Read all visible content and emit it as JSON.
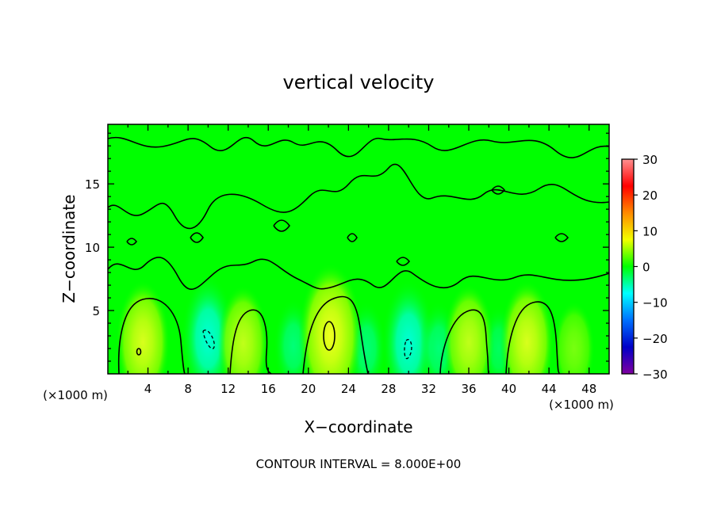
{
  "chart_data": {
    "type": "heatmap",
    "title": "vertical velocity",
    "xlabel": "X−coordinate",
    "ylabel": "Z−coordinate",
    "x_unit_label": "(×1000 m)",
    "z_unit_label": "(×1000 m)",
    "xlim": [
      0,
      50
    ],
    "ylim": [
      0,
      19.7
    ],
    "x_ticks": [
      4,
      8,
      12,
      16,
      20,
      24,
      28,
      32,
      36,
      40,
      44,
      48
    ],
    "x_tick_labels": [
      "4",
      "8",
      "12",
      "16",
      "20",
      "24",
      "28",
      "32",
      "36",
      "40",
      "44",
      "48"
    ],
    "y_ticks": [
      5,
      10,
      15
    ],
    "y_tick_labels": [
      "5",
      "10",
      "15"
    ],
    "colorbar": {
      "range": [
        -30,
        30
      ],
      "ticks": [
        30,
        20,
        10,
        0,
        -10,
        -20,
        -30
      ],
      "tick_labels": [
        "30",
        "20",
        "10",
        "0",
        "−10",
        "−20",
        "−30"
      ],
      "colors": [
        "#ff9090",
        "#ff0000",
        "#ff8a00",
        "#f2ff00",
        "#00ff00",
        "#00ffff",
        "#0070ff",
        "#0000c8",
        "#8000a0"
      ]
    },
    "background_value": 0,
    "updrafts": [
      {
        "x": 3.5,
        "z": 2.5,
        "w": 9
      },
      {
        "x": 13.5,
        "z": 2.4,
        "w": 8
      },
      {
        "x": 22.2,
        "z": 3.0,
        "w": 12
      },
      {
        "x": 36.0,
        "z": 2.5,
        "w": 8
      },
      {
        "x": 41.8,
        "z": 2.5,
        "w": 9
      },
      {
        "x": 46.5,
        "z": 2.0,
        "w": 5
      }
    ],
    "downdrafts": [
      {
        "x": 10.0,
        "z": 2.8,
        "w": -9
      },
      {
        "x": 30.0,
        "z": 2.4,
        "w": -9
      },
      {
        "x": 18.5,
        "z": 2.2,
        "w": -5
      },
      {
        "x": 25.8,
        "z": 2.0,
        "w": -5
      },
      {
        "x": 33.0,
        "z": 2.0,
        "w": -5
      },
      {
        "x": 39.0,
        "z": 2.0,
        "w": -4
      }
    ],
    "contour_interval_label": "CONTOUR INTERVAL = 8.000E+00"
  },
  "colors": {
    "background": "#ffffff",
    "field_neutral": "#00ff00",
    "contour_line": "#000000"
  }
}
